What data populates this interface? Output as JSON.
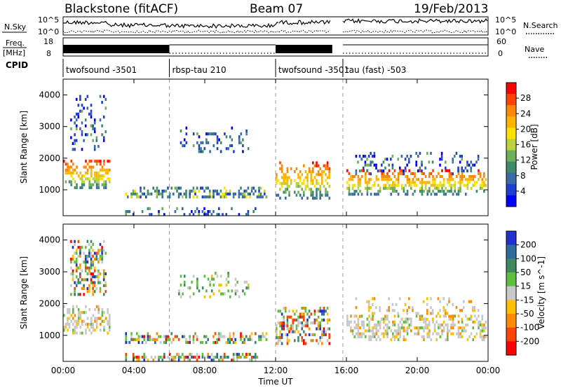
{
  "header": {
    "station": "Blackstone (fitACF)",
    "beam": "Beam 07",
    "date": "19/Feb/2013"
  },
  "top_panels": {
    "nsky_label": "N.Sky",
    "nsky_ticks": [
      "10^5",
      "10^0"
    ],
    "nsearch_label": "N.Search",
    "nsearch_ticks": [
      "10^5",
      "10^0"
    ],
    "freq_label_top": "Freq.",
    "freq_label_bottom": "[MHz]",
    "freq_ticks": [
      "18",
      "8"
    ],
    "nave_label": "Nave",
    "nave_ticks": [
      "60",
      "0"
    ],
    "cpid_label": "CPID"
  },
  "cpid_segments": [
    {
      "label": "twofsound -3501",
      "start": 0.0,
      "end": 6.0
    },
    {
      "label": "rbsp-tau 210",
      "start": 6.0,
      "end": 12.0
    },
    {
      "label": "twofsound -3501",
      "start": 12.0,
      "end": 15.2
    },
    {
      "label": "tau (fast) -503",
      "start": 15.8,
      "end": 24.0
    }
  ],
  "chart_data": [
    {
      "type": "heatmap",
      "title": "",
      "xlabel": "Time UT",
      "ylabel": "Slant Range [km]",
      "xlim": [
        0,
        24
      ],
      "ylim": [
        180,
        4500
      ],
      "y_ticks": [
        "1000",
        "2000",
        "3000",
        "4000"
      ],
      "x_ticks": [
        "00:00",
        "04:00",
        "08:00",
        "12:00",
        "16:00",
        "20:00",
        "00:00"
      ],
      "colorbar": {
        "label": "Power [dB]",
        "ticks": [
          "28",
          "24",
          "20",
          "16",
          "12",
          "8",
          "4"
        ],
        "colors": [
          "#ff0000",
          "#ff4400",
          "#ff8800",
          "#ffb400",
          "#ffe000",
          "#bcd23c",
          "#6fae5a",
          "#3f8a6a",
          "#3a6aa8",
          "#1f3fd0",
          "#0000ff"
        ]
      },
      "echo_regions": [
        {
          "t0": 0.0,
          "t1": 2.6,
          "r0": 1050,
          "r1": 1950,
          "level": "high"
        },
        {
          "t0": 0.4,
          "t1": 2.4,
          "r0": 2300,
          "r1": 4000,
          "level": "low"
        },
        {
          "t0": 3.5,
          "t1": 11.5,
          "r0": 800,
          "r1": 1100,
          "level": "mid"
        },
        {
          "t0": 3.5,
          "t1": 11.0,
          "r0": 200,
          "r1": 450,
          "level": "low"
        },
        {
          "t0": 6.5,
          "t1": 10.5,
          "r0": 2200,
          "r1": 3000,
          "level": "low"
        },
        {
          "t0": 12.0,
          "t1": 15.0,
          "r0": 750,
          "r1": 1900,
          "level": "high"
        },
        {
          "t0": 16.0,
          "t1": 23.9,
          "r0": 850,
          "r1": 1650,
          "level": "high"
        },
        {
          "t0": 16.5,
          "t1": 23.5,
          "r0": 1500,
          "r1": 2200,
          "level": "low"
        }
      ]
    },
    {
      "type": "heatmap",
      "title": "",
      "xlabel": "Time UT",
      "ylabel": "Slant Range [km]",
      "xlim": [
        0,
        24
      ],
      "ylim": [
        180,
        4500
      ],
      "y_ticks": [
        "1000",
        "2000",
        "3000",
        "4000"
      ],
      "x_ticks": [
        "00:00",
        "04:00",
        "08:00",
        "12:00",
        "16:00",
        "20:00",
        "00:00"
      ],
      "colorbar": {
        "label": "Velocity [m s^-1]",
        "ticks": [
          "200",
          "100",
          "50",
          "15",
          "-15",
          "-50",
          "-100",
          "-200"
        ],
        "colors": [
          "#1f2fd0",
          "#2f6a9a",
          "#3f8a60",
          "#5fbe3c",
          "#c8c8c8",
          "#ffc000",
          "#ff8c00",
          "#ff4400",
          "#ff0000"
        ]
      },
      "echo_regions": [
        {
          "t0": 0.0,
          "t1": 2.6,
          "r0": 1050,
          "r1": 1950,
          "level": "ground"
        },
        {
          "t0": 0.4,
          "t1": 2.4,
          "r0": 2300,
          "r1": 4000,
          "level": "mixed"
        },
        {
          "t0": 3.5,
          "t1": 11.5,
          "r0": 800,
          "r1": 1100,
          "level": "mixed"
        },
        {
          "t0": 3.5,
          "t1": 11.0,
          "r0": 200,
          "r1": 450,
          "level": "mixed"
        },
        {
          "t0": 6.5,
          "t1": 10.5,
          "r0": 2200,
          "r1": 3000,
          "level": "positive"
        },
        {
          "t0": 12.0,
          "t1": 15.0,
          "r0": 750,
          "r1": 1900,
          "level": "mixed"
        },
        {
          "t0": 16.0,
          "t1": 23.9,
          "r0": 850,
          "r1": 1650,
          "level": "ground"
        },
        {
          "t0": 16.5,
          "t1": 23.5,
          "r0": 1500,
          "r1": 2200,
          "level": "negative"
        }
      ]
    }
  ]
}
